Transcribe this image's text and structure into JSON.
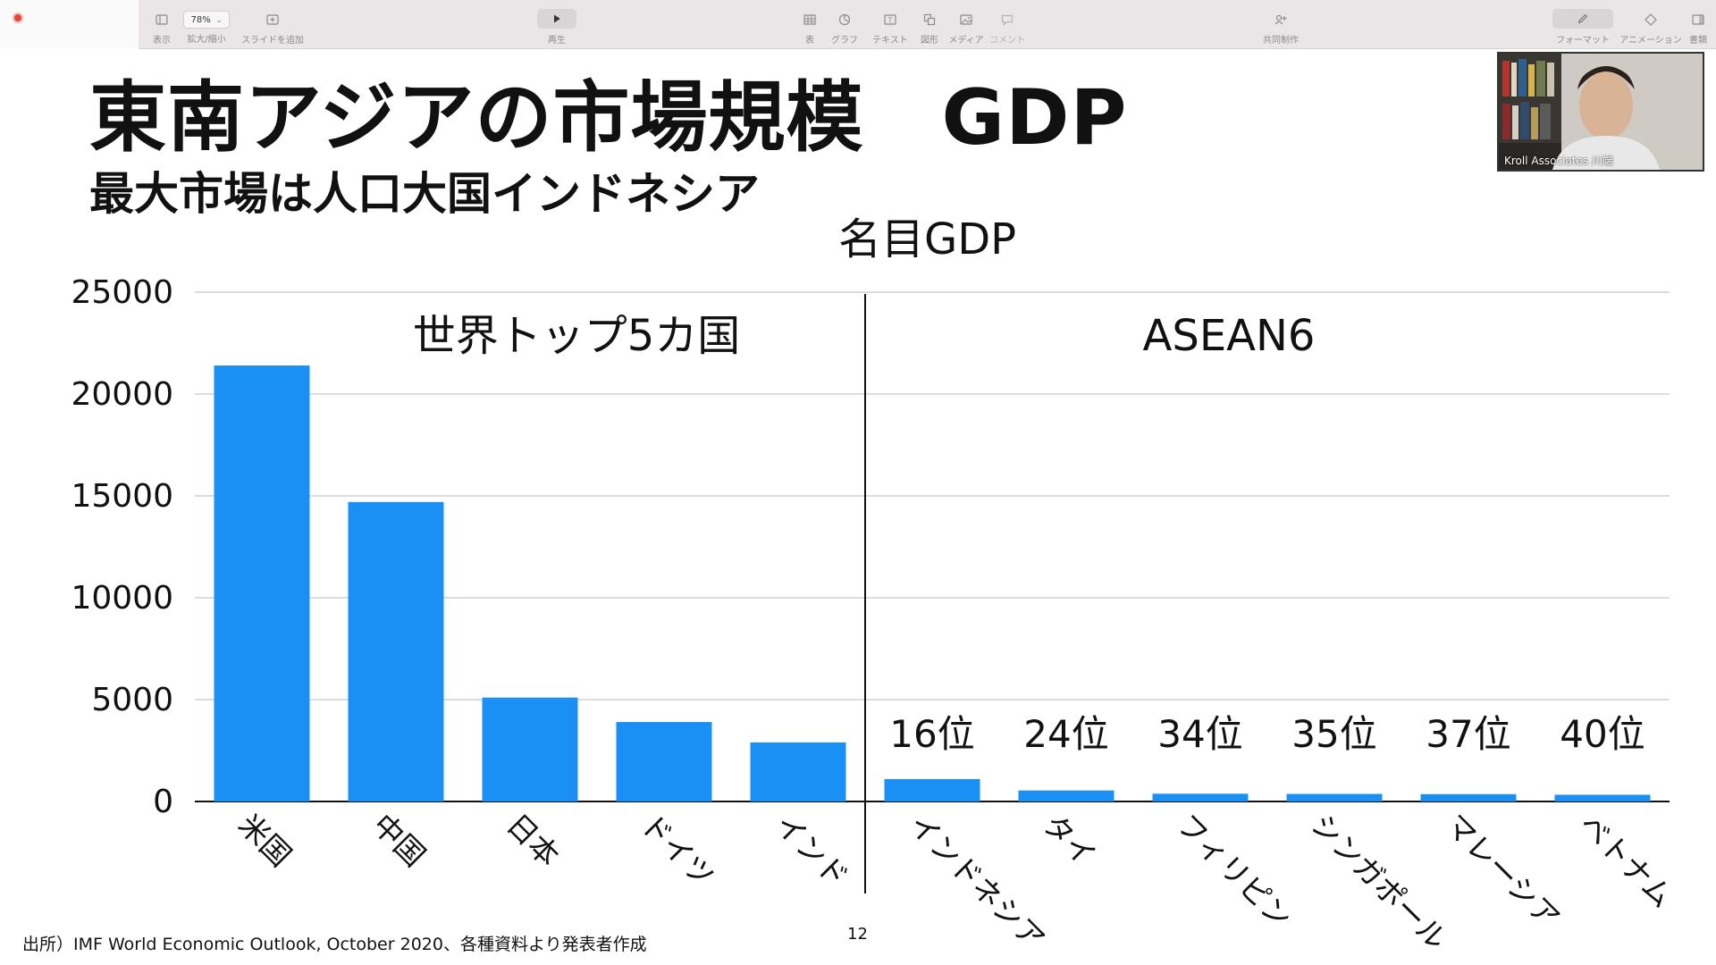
{
  "toolbar": {
    "zoom": "78%",
    "view_label": "表示",
    "zoom_label": "拡大/縮小",
    "add_slide_label": "スライドを追加",
    "play_label": "再生",
    "table_label": "表",
    "chart_label": "グラフ",
    "text_label": "テキスト",
    "shape_label": "図形",
    "media_label": "メディア",
    "comment_label": "コメント",
    "collaborate_label": "共同制作",
    "format_label": "フォーマット",
    "animate_label": "アニメーション",
    "document_label": "書類"
  },
  "slide": {
    "title": "東南アジアの市場規模　GDP",
    "subtitle": "最大市場は人口大国インドネシア",
    "source_note": "出所）IMF World Economic Outlook, October 2020、各種資料より発表者作成",
    "page_number": "12"
  },
  "webcam": {
    "name": "Kroll Associates  川端"
  },
  "colors": {
    "bar": "#1a90f5",
    "toolbar": "#eae6e7",
    "record_dot": "#e8403a"
  },
  "chart_data": {
    "type": "bar",
    "title": "名目GDP",
    "categories": [
      "米国",
      "中国",
      "日本",
      "ドイツ",
      "インド",
      "インドネシア",
      "タイ",
      "フィリピン",
      "シンガポール",
      "マレーシア",
      "ベトナム"
    ],
    "values": [
      21400,
      14700,
      5100,
      3900,
      2900,
      1100,
      540,
      380,
      370,
      360,
      330
    ],
    "ylim": [
      0,
      25000
    ],
    "yticks": [
      "0",
      "5000",
      "10000",
      "15000",
      "20000",
      "25000"
    ],
    "grid": true,
    "group_labels": [
      "世界トップ5カ国",
      "ASEAN6"
    ],
    "rank_labels": [
      "16位",
      "24位",
      "34位",
      "35位",
      "37位",
      "40位"
    ]
  }
}
